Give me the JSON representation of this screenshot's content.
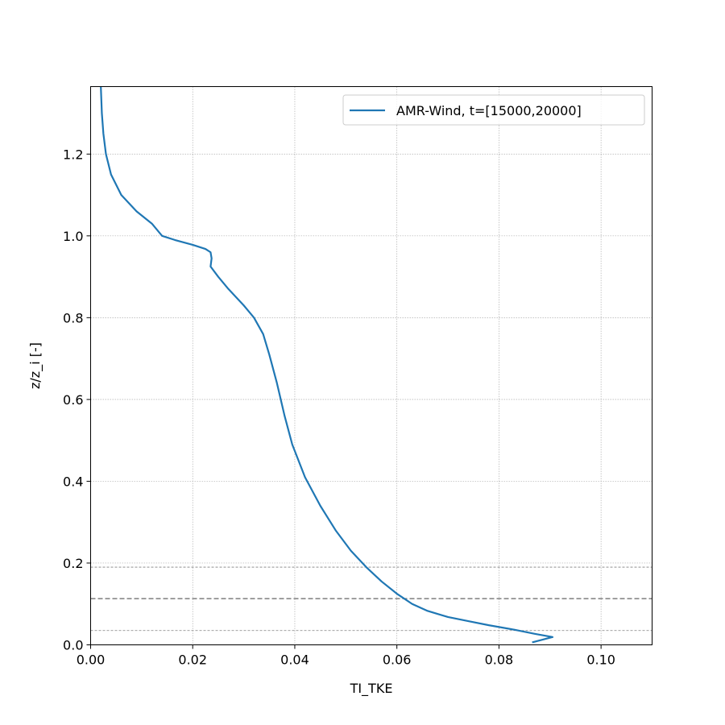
{
  "chart_data": {
    "type": "line",
    "xlabel": "TI_TKE",
    "ylabel": "z/z_i [-]",
    "xlim": [
      0.0,
      0.11
    ],
    "ylim": [
      0.0,
      1.365
    ],
    "xticks": [
      "0.00",
      "0.02",
      "0.04",
      "0.06",
      "0.08",
      "0.10"
    ],
    "yticks": [
      "0.0",
      "0.2",
      "0.4",
      "0.6",
      "0.8",
      "1.0",
      "1.2"
    ],
    "grid": true,
    "legend_position": "top-right",
    "colors": {
      "series": "#1f77b4",
      "reference_lines": "#7f7f7f",
      "grid": "#b0b0b0"
    },
    "reference_lines": [
      {
        "y": 0.035,
        "style": "dashed-thin"
      },
      {
        "y": 0.113,
        "style": "dashed"
      },
      {
        "y": 0.19,
        "style": "dashed-thin"
      }
    ],
    "series": [
      {
        "name": "AMR-Wind, t=[15000,20000]",
        "points": [
          [
            0.0865,
            0.006
          ],
          [
            0.0905,
            0.019
          ],
          [
            0.087,
            0.027
          ],
          [
            0.083,
            0.037
          ],
          [
            0.078,
            0.048
          ],
          [
            0.074,
            0.058
          ],
          [
            0.07,
            0.068
          ],
          [
            0.066,
            0.083
          ],
          [
            0.063,
            0.1
          ],
          [
            0.06,
            0.125
          ],
          [
            0.057,
            0.155
          ],
          [
            0.054,
            0.19
          ],
          [
            0.051,
            0.23
          ],
          [
            0.048,
            0.28
          ],
          [
            0.045,
            0.34
          ],
          [
            0.042,
            0.41
          ],
          [
            0.0395,
            0.49
          ],
          [
            0.038,
            0.56
          ],
          [
            0.0365,
            0.64
          ],
          [
            0.035,
            0.71
          ],
          [
            0.0338,
            0.76
          ],
          [
            0.032,
            0.8
          ],
          [
            0.03,
            0.83
          ],
          [
            0.027,
            0.87
          ],
          [
            0.025,
            0.9
          ],
          [
            0.0235,
            0.925
          ],
          [
            0.0237,
            0.945
          ],
          [
            0.0235,
            0.96
          ],
          [
            0.0225,
            0.968
          ],
          [
            0.02,
            0.978
          ],
          [
            0.0165,
            0.99
          ],
          [
            0.014,
            1.0
          ],
          [
            0.012,
            1.03
          ],
          [
            0.009,
            1.06
          ],
          [
            0.006,
            1.1
          ],
          [
            0.004,
            1.15
          ],
          [
            0.003,
            1.2
          ],
          [
            0.0025,
            1.25
          ],
          [
            0.0022,
            1.3
          ],
          [
            0.002,
            1.365
          ]
        ]
      }
    ]
  }
}
